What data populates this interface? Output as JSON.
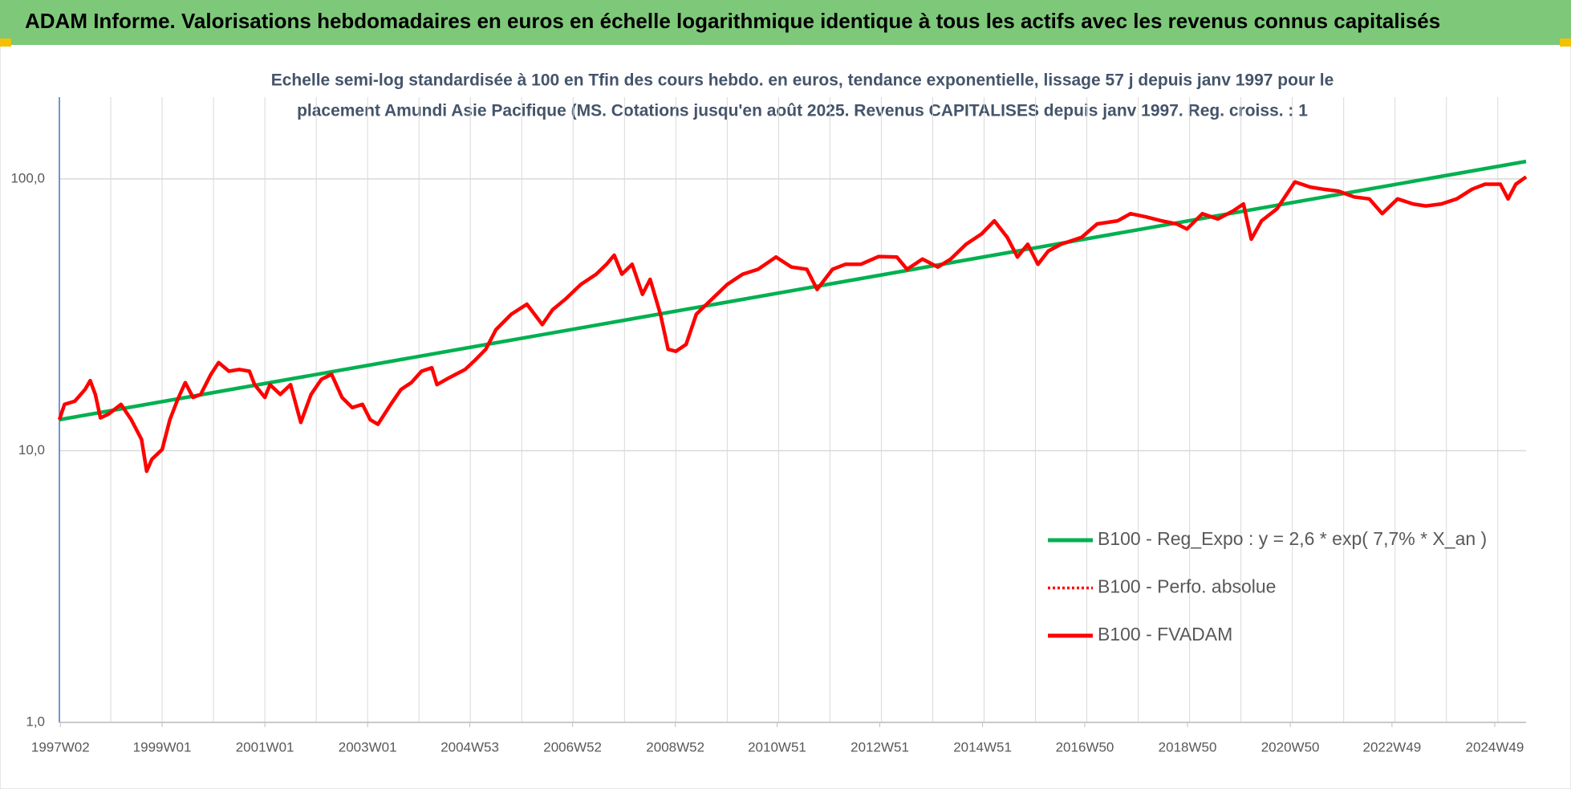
{
  "chart_data": {
    "type": "line",
    "title": "ADAM Informe. Valorisations hebdomadaires en euros en échelle logarithmique identique à tous les actifs avec les revenus connus capitalisés",
    "subtitle": [
      "Echelle semi-log standardisée à 100 en Tfin des cours hebdo. en euros, tendance exponentielle, lissage 57 j depuis janv 1997 pour le",
      "placement Amundi Asie Pacifique (MS. Cotations jusqu'en août 2025. Revenus CAPITALISES depuis janv 1997. Reg. croiss. : 1"
    ],
    "log_scale": true,
    "grid": true,
    "legend": "lower right",
    "ylim": [
      1,
      200
    ],
    "yticks": [
      {
        "value": 1,
        "label": "1,0"
      },
      {
        "value": 10,
        "label": "10,0"
      },
      {
        "value": 100,
        "label": "100,0"
      }
    ],
    "xlim": [
      1997.0,
      2025.55
    ],
    "xticks": [
      {
        "value": 1997.02,
        "label": "1997W02"
      },
      {
        "value": 1999.0,
        "label": "1999W01"
      },
      {
        "value": 2001.0,
        "label": "2001W01"
      },
      {
        "value": 2003.0,
        "label": "2003W01"
      },
      {
        "value": 2004.99,
        "label": "2004W53"
      },
      {
        "value": 2006.99,
        "label": "2006W52"
      },
      {
        "value": 2008.99,
        "label": "2008W52"
      },
      {
        "value": 2010.97,
        "label": "2010W51"
      },
      {
        "value": 2012.97,
        "label": "2012W51"
      },
      {
        "value": 2014.97,
        "label": "2014W51"
      },
      {
        "value": 2016.96,
        "label": "2016W50"
      },
      {
        "value": 2018.96,
        "label": "2018W50"
      },
      {
        "value": 2020.96,
        "label": "2020W50"
      },
      {
        "value": 2022.94,
        "label": "2022W49"
      },
      {
        "value": 2024.94,
        "label": "2024W49"
      }
    ],
    "xgrid": [
      1998,
      1999,
      2000,
      2001,
      2002,
      2003,
      2004,
      2005,
      2006,
      2007,
      2008,
      2009,
      2010,
      2011,
      2012,
      2013,
      2014,
      2015,
      2016,
      2017,
      2018,
      2019,
      2020,
      2021,
      2022,
      2023,
      2024,
      2025
    ],
    "x": [
      1997.0,
      1997.1,
      1997.3,
      1997.5,
      1997.6,
      1997.7,
      1997.8,
      1997.95,
      1998.2,
      1998.4,
      1998.6,
      1998.7,
      1998.8,
      1999.0,
      1999.15,
      1999.3,
      1999.45,
      1999.6,
      1999.75,
      1999.95,
      2000.1,
      2000.3,
      2000.5,
      2000.7,
      2000.8,
      2001.0,
      2001.1,
      2001.3,
      2001.5,
      2001.7,
      2001.9,
      2002.1,
      2002.3,
      2002.5,
      2002.7,
      2002.9,
      2003.05,
      2003.2,
      2003.45,
      2003.65,
      2003.85,
      2004.05,
      2004.25,
      2004.35,
      2004.6,
      2004.9,
      2005.1,
      2005.3,
      2005.5,
      2005.8,
      2006.1,
      2006.4,
      2006.6,
      2006.85,
      2007.15,
      2007.45,
      2007.65,
      2007.8,
      2007.95,
      2008.15,
      2008.35,
      2008.5,
      2008.7,
      2008.85,
      2009.0,
      2009.2,
      2009.4,
      2009.7,
      2010.0,
      2010.3,
      2010.6,
      2010.95,
      2011.25,
      2011.55,
      2011.75,
      2012.05,
      2012.3,
      2012.6,
      2012.95,
      2013.3,
      2013.5,
      2013.8,
      2014.1,
      2014.35,
      2014.65,
      2014.95,
      2015.2,
      2015.45,
      2015.65,
      2015.85,
      2016.05,
      2016.25,
      2016.5,
      2016.9,
      2017.2,
      2017.6,
      2017.85,
      2018.15,
      2018.45,
      2018.75,
      2018.95,
      2019.25,
      2019.55,
      2019.85,
      2020.05,
      2020.2,
      2020.4,
      2020.7,
      2021.05,
      2021.35,
      2021.6,
      2021.9,
      2022.2,
      2022.5,
      2022.75,
      2023.05,
      2023.35,
      2023.6,
      2023.9,
      2024.2,
      2024.5,
      2024.75,
      2025.05,
      2025.2,
      2025.35,
      2025.55
    ],
    "series": [
      {
        "name": "B100 - Reg_Expo : y = 2,6 * exp( 7,7% *  X_an )",
        "color": "#00b050",
        "style": "solid",
        "x": [
          1997.0,
          2025.55
        ],
        "values": [
          13,
          116
        ]
      },
      {
        "name": "B100 - Perfo. absolue",
        "color": "#ff0000",
        "style": "dotted",
        "values": [
          13.0,
          14.8,
          15.2,
          16.8,
          18.1,
          16.1,
          13.2,
          13.6,
          14.8,
          13.0,
          11.0,
          8.4,
          9.3,
          10.1,
          13.0,
          15.4,
          17.8,
          15.7,
          16.1,
          19.1,
          21.1,
          19.6,
          19.9,
          19.6,
          17.5,
          15.7,
          17.5,
          16.1,
          17.5,
          12.7,
          16.1,
          18.3,
          19.1,
          15.7,
          14.4,
          14.8,
          13.0,
          12.5,
          14.8,
          16.8,
          17.8,
          19.6,
          20.2,
          17.5,
          18.6,
          19.9,
          21.6,
          23.6,
          27.9,
          31.8,
          34.6,
          29.1,
          33.0,
          36.1,
          40.9,
          44.6,
          48.5,
          52.4,
          44.6,
          48.5,
          37.6,
          42.7,
          31.8,
          23.6,
          23.2,
          24.6,
          31.8,
          36.1,
          40.9,
          44.6,
          46.5,
          51.6,
          47.4,
          46.5,
          39.2,
          46.5,
          48.5,
          48.5,
          51.8,
          51.6,
          46.5,
          50.7,
          47.4,
          50.7,
          57.5,
          62.7,
          70.1,
          61.0,
          51.6,
          57.5,
          48.5,
          54.3,
          57.5,
          61.0,
          68.3,
          70.1,
          74.5,
          72.5,
          70.1,
          68.3,
          65.4,
          74.5,
          71.2,
          76.3,
          80.9,
          60.0,
          70.1,
          77.6,
          97.5,
          93.3,
          91.7,
          90.2,
          85.9,
          84.4,
          74.5,
          84.4,
          80.9,
          79.5,
          80.9,
          84.4,
          91.7,
          95.6,
          95.6,
          84.4,
          95.6,
          101.7
        ]
      },
      {
        "name": "B100 - FVADAM",
        "color": "#ff0000",
        "style": "solid",
        "values": [
          13.0,
          14.8,
          15.2,
          16.8,
          18.1,
          16.1,
          13.2,
          13.6,
          14.8,
          13.0,
          11.0,
          8.4,
          9.3,
          10.1,
          13.0,
          15.4,
          17.8,
          15.7,
          16.1,
          19.1,
          21.1,
          19.6,
          19.9,
          19.6,
          17.5,
          15.7,
          17.5,
          16.1,
          17.5,
          12.7,
          16.1,
          18.3,
          19.1,
          15.7,
          14.4,
          14.8,
          13.0,
          12.5,
          14.8,
          16.8,
          17.8,
          19.6,
          20.2,
          17.5,
          18.6,
          19.9,
          21.6,
          23.6,
          27.9,
          31.8,
          34.6,
          29.1,
          33.0,
          36.1,
          40.9,
          44.6,
          48.5,
          52.4,
          44.6,
          48.5,
          37.6,
          42.7,
          31.8,
          23.6,
          23.2,
          24.6,
          31.8,
          36.1,
          40.9,
          44.6,
          46.5,
          51.6,
          47.4,
          46.5,
          39.2,
          46.5,
          48.5,
          48.5,
          51.8,
          51.6,
          46.5,
          50.7,
          47.4,
          50.7,
          57.5,
          62.7,
          70.1,
          61.0,
          51.6,
          57.5,
          48.5,
          54.3,
          57.5,
          61.0,
          68.3,
          70.1,
          74.5,
          72.5,
          70.1,
          68.3,
          65.4,
          74.5,
          71.2,
          76.3,
          80.9,
          60.0,
          70.1,
          77.6,
          97.5,
          93.3,
          91.7,
          90.2,
          85.9,
          84.4,
          74.5,
          84.4,
          80.9,
          79.5,
          80.9,
          84.4,
          91.7,
          95.6,
          95.6,
          84.4,
          95.6,
          101.7
        ]
      }
    ]
  }
}
